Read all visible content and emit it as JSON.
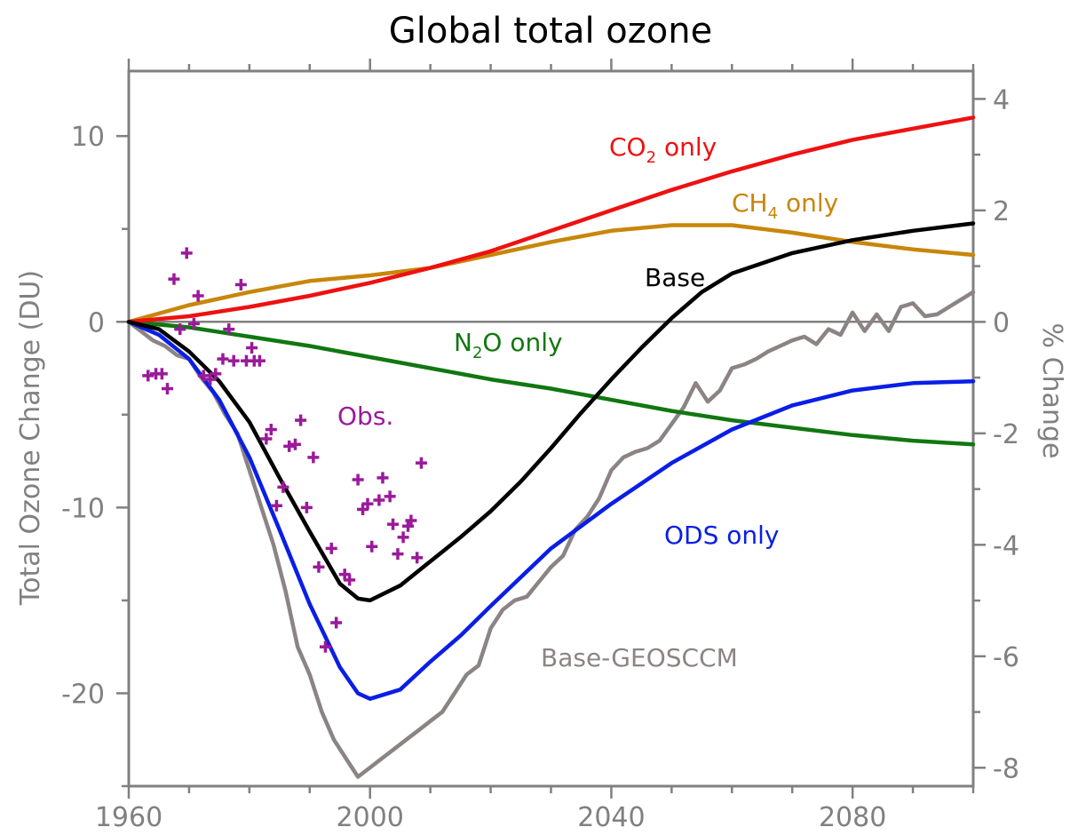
{
  "chart_data": {
    "type": "line",
    "title": "Global total ozone",
    "ylabel": "Total Ozone Change (DU)",
    "y2label": "% Change",
    "xlim": [
      1960,
      2100
    ],
    "ylim": [
      -25,
      13.5
    ],
    "y2lim": [
      -8.33,
      4.5
    ],
    "x_ticks": [
      1960,
      2000,
      2040,
      2080
    ],
    "y_ticks": [
      10,
      0,
      -10,
      -20
    ],
    "y_tick_labels": [
      "10",
      "0",
      "-10",
      "-20"
    ],
    "y2_ticks": [
      4,
      2,
      0,
      -2,
      -4,
      -6,
      -8
    ],
    "y2_tick_labels": [
      "4",
      "2",
      "0",
      "-2",
      "-4",
      "-6",
      "-8"
    ],
    "zero_line": true,
    "grid": false,
    "series": [
      {
        "name": "CO2 only",
        "label_main": "CO",
        "label_sub": "2",
        "label_tail": " only",
        "color": "#ee1111",
        "x": [
          1960,
          1970,
          1980,
          1990,
          2000,
          2010,
          2020,
          2030,
          2040,
          2050,
          2060,
          2070,
          2080,
          2090,
          2100
        ],
        "y": [
          0,
          0.3,
          0.8,
          1.4,
          2.1,
          2.9,
          3.8,
          4.9,
          6.0,
          7.1,
          8.1,
          9.0,
          9.8,
          10.4,
          11.0
        ]
      },
      {
        "name": "CH4 only",
        "label_main": "CH",
        "label_sub": "4",
        "label_tail": " only",
        "color": "#c8860a",
        "x": [
          1960,
          1970,
          1980,
          1990,
          2000,
          2010,
          2020,
          2030,
          2040,
          2050,
          2060,
          2070,
          2080,
          2090,
          2100
        ],
        "y": [
          0,
          0.9,
          1.6,
          2.2,
          2.5,
          2.9,
          3.6,
          4.3,
          4.9,
          5.2,
          5.2,
          4.8,
          4.3,
          3.9,
          3.6
        ]
      },
      {
        "name": "Base",
        "label_main": "Base",
        "color": "#000000",
        "x": [
          1960,
          1965,
          1970,
          1975,
          1980,
          1985,
          1990,
          1995,
          1998,
          2000,
          2005,
          2010,
          2015,
          2020,
          2025,
          2030,
          2035,
          2040,
          2045,
          2050,
          2055,
          2060,
          2070,
          2080,
          2090,
          2100
        ],
        "y": [
          0,
          -0.4,
          -1.6,
          -3.2,
          -5.4,
          -8.4,
          -11.3,
          -14.1,
          -14.9,
          -15.0,
          -14.2,
          -12.9,
          -11.6,
          -10.2,
          -8.6,
          -6.8,
          -4.9,
          -3.1,
          -1.4,
          0.2,
          1.6,
          2.6,
          3.7,
          4.4,
          4.9,
          5.3
        ]
      },
      {
        "name": "N2O only",
        "label_main": "N",
        "label_sub": "2",
        "label_tail": "O only",
        "color": "#117711",
        "x": [
          1960,
          1970,
          1980,
          1990,
          2000,
          2010,
          2020,
          2030,
          2040,
          2050,
          2060,
          2070,
          2080,
          2090,
          2100
        ],
        "y": [
          0,
          -0.3,
          -0.8,
          -1.3,
          -1.9,
          -2.5,
          -3.1,
          -3.6,
          -4.2,
          -4.8,
          -5.3,
          -5.7,
          -6.1,
          -6.4,
          -6.6
        ]
      },
      {
        "name": "ODS only",
        "label_main": "ODS only",
        "color": "#0a1ee6",
        "x": [
          1960,
          1965,
          1970,
          1975,
          1980,
          1985,
          1990,
          1995,
          1998,
          2000,
          2005,
          2010,
          2015,
          2020,
          2030,
          2040,
          2050,
          2060,
          2070,
          2080,
          2090,
          2100
        ],
        "y": [
          0,
          -0.7,
          -2.0,
          -4.2,
          -7.3,
          -11.2,
          -15.2,
          -18.6,
          -20.0,
          -20.3,
          -19.8,
          -18.3,
          -16.9,
          -15.3,
          -12.2,
          -9.8,
          -7.6,
          -5.8,
          -4.5,
          -3.7,
          -3.3,
          -3.2
        ]
      },
      {
        "name": "Base-GEOSCCM",
        "label_main": "Base-GEOSCCM",
        "color": "#8c8484",
        "x": [
          1960,
          1962,
          1964,
          1966,
          1968,
          1970,
          1972,
          1974,
          1976,
          1978,
          1980,
          1982,
          1984,
          1986,
          1988,
          1990,
          1992,
          1994,
          1996,
          1998,
          2000,
          2002,
          2004,
          2006,
          2008,
          2010,
          2012,
          2014,
          2016,
          2018,
          2020,
          2022,
          2024,
          2026,
          2028,
          2030,
          2032,
          2034,
          2036,
          2038,
          2040,
          2042,
          2044,
          2046,
          2048,
          2050,
          2052,
          2054,
          2056,
          2058,
          2060,
          2062,
          2064,
          2066,
          2068,
          2070,
          2072,
          2074,
          2076,
          2078,
          2080,
          2082,
          2084,
          2086,
          2088,
          2090,
          2092,
          2094,
          2096,
          2098,
          2100
        ],
        "y": [
          0,
          -0.5,
          -1.0,
          -1.3,
          -1.8,
          -2.0,
          -3.0,
          -3.8,
          -5.0,
          -6.0,
          -8.0,
          -10.0,
          -12.0,
          -14.5,
          -17.5,
          -19.0,
          -21.0,
          -22.5,
          -23.5,
          -24.5,
          -24.0,
          -23.5,
          -23.0,
          -22.5,
          -22.0,
          -21.5,
          -21.0,
          -20.0,
          -19.0,
          -18.5,
          -16.5,
          -15.5,
          -15.0,
          -14.8,
          -14.0,
          -13.2,
          -12.6,
          -11.2,
          -10.5,
          -9.5,
          -8.0,
          -7.3,
          -7.0,
          -6.8,
          -6.4,
          -5.5,
          -4.6,
          -3.3,
          -4.3,
          -3.7,
          -2.5,
          -2.3,
          -2.0,
          -1.6,
          -1.3,
          -1.0,
          -0.8,
          -1.2,
          -0.4,
          -0.7,
          0.5,
          -0.5,
          0.4,
          -0.5,
          0.8,
          1.0,
          0.3,
          0.4,
          0.8,
          1.2,
          1.6
        ]
      }
    ],
    "observations": {
      "name": "Obs.",
      "color": "#9a1a9a",
      "marker": "+",
      "points": [
        [
          1963.2,
          -2.9
        ],
        [
          1964.5,
          -2.8
        ],
        [
          1965.5,
          -2.8
        ],
        [
          1966.4,
          -3.6
        ],
        [
          1967.5,
          2.3
        ],
        [
          1968.5,
          -0.4
        ],
        [
          1969.6,
          3.7
        ],
        [
          1970.8,
          -0.1
        ],
        [
          1971.5,
          1.4
        ],
        [
          1972.4,
          -2.9
        ],
        [
          1973.5,
          -3.1
        ],
        [
          1974.4,
          -2.8
        ],
        [
          1975.6,
          -2.0
        ],
        [
          1976.6,
          -0.4
        ],
        [
          1977.4,
          -2.1
        ],
        [
          1978.6,
          2.0
        ],
        [
          1979.5,
          -2.1
        ],
        [
          1980.4,
          -1.4
        ],
        [
          1980.8,
          -2.1
        ],
        [
          1981.7,
          -2.1
        ],
        [
          1982.8,
          -6.3
        ],
        [
          1983.6,
          -5.8
        ],
        [
          1984.5,
          -9.9
        ],
        [
          1985.6,
          -8.9
        ],
        [
          1986.6,
          -6.7
        ],
        [
          1987.6,
          -6.6
        ],
        [
          1988.5,
          -5.3
        ],
        [
          1989.5,
          -10.0
        ],
        [
          1990.6,
          -7.3
        ],
        [
          1991.5,
          -13.2
        ],
        [
          1992.6,
          -17.5
        ],
        [
          1993.6,
          -12.2
        ],
        [
          1994.4,
          -16.2
        ],
        [
          1995.8,
          -13.6
        ],
        [
          1996.6,
          -13.9
        ],
        [
          1998.0,
          -8.5
        ],
        [
          1998.8,
          -10.1
        ],
        [
          1999.6,
          -9.8
        ],
        [
          2000.3,
          -12.1
        ],
        [
          2001.5,
          -9.6
        ],
        [
          2002.1,
          -8.4
        ],
        [
          2003.3,
          -9.4
        ],
        [
          2003.8,
          -10.9
        ],
        [
          2004.6,
          -12.5
        ],
        [
          2005.5,
          -11.6
        ],
        [
          2006.3,
          -11.0
        ],
        [
          2006.8,
          -10.7
        ],
        [
          2007.8,
          -12.7
        ],
        [
          2008.5,
          -7.6
        ]
      ]
    }
  }
}
